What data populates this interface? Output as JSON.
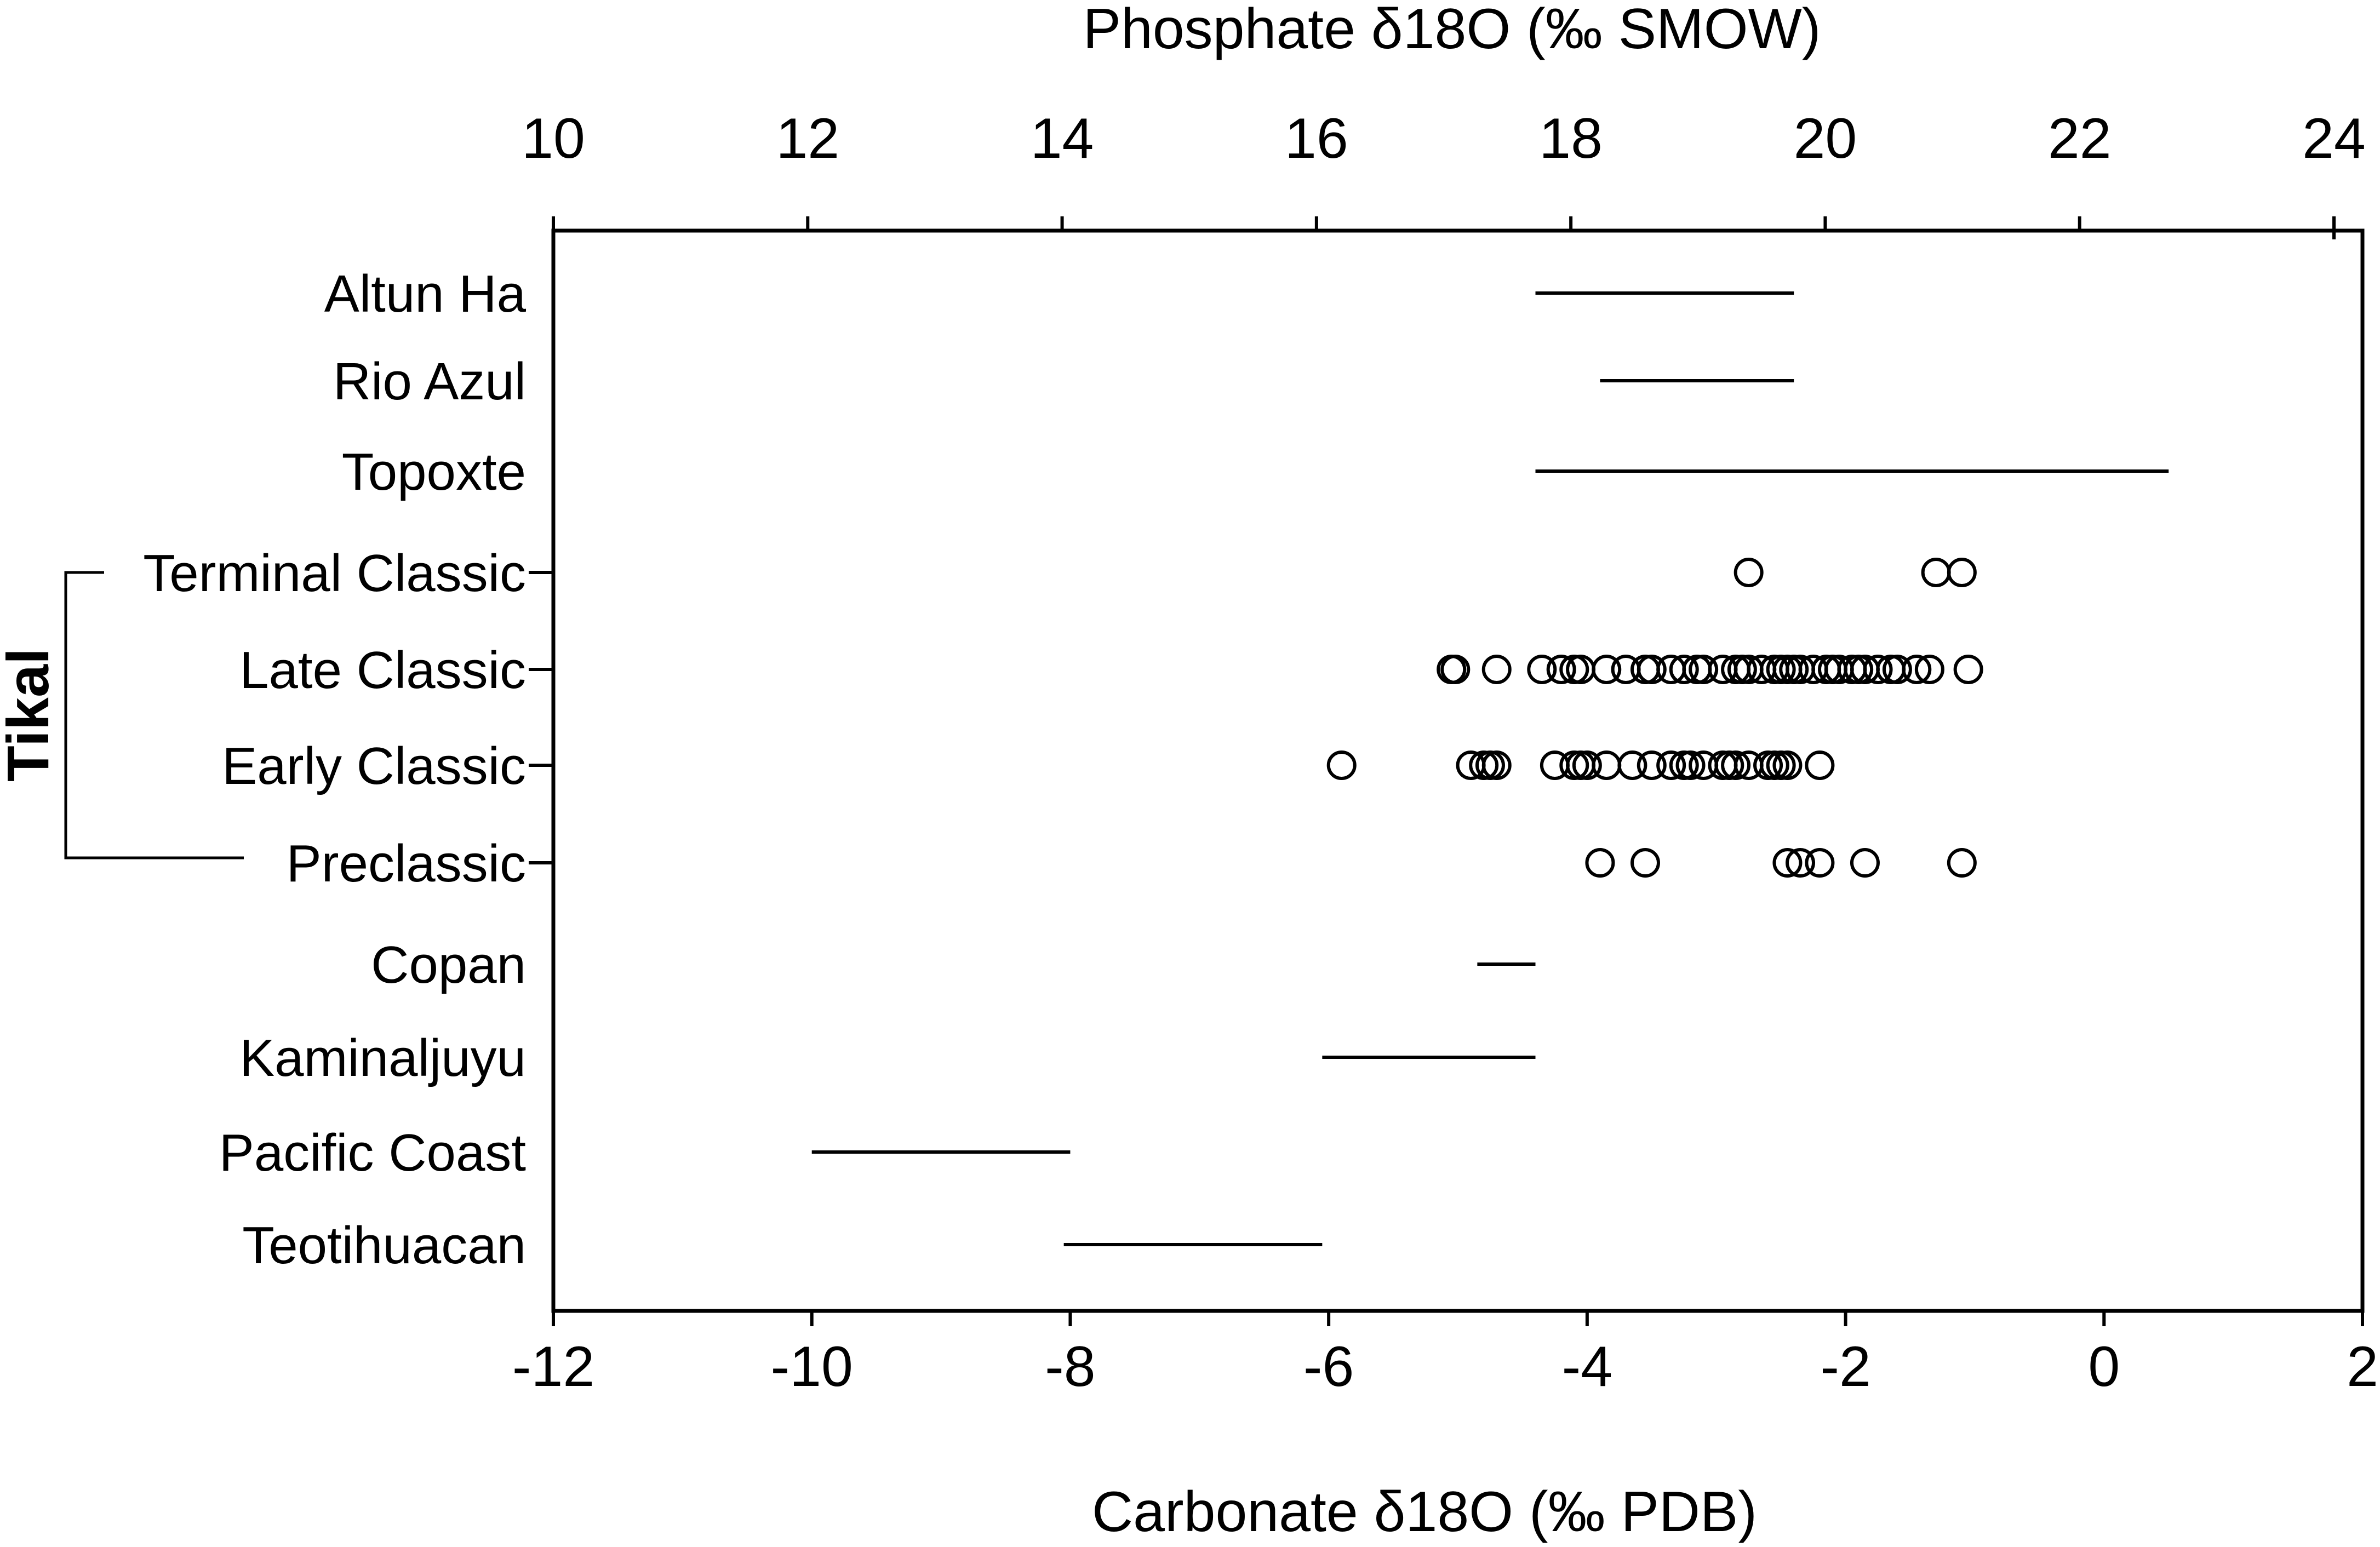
{
  "chart_data": {
    "type": "scatter",
    "top_axis": {
      "label": "Phosphate δ18O (‰ SMOW)",
      "ticks": [
        10,
        12,
        14,
        16,
        18,
        20,
        22,
        24
      ],
      "range": [
        10,
        24
      ]
    },
    "bottom_axis": {
      "label": "Carbonate δ18O (‰ PDB)",
      "ticks": [
        -12,
        -10,
        -8,
        -6,
        -4,
        -2,
        0,
        2
      ],
      "range": [
        -12,
        2
      ]
    },
    "group_label": "Tikal",
    "categories": [
      {
        "name": "Altun Ha",
        "range_pdb": [
          -4.4,
          -2.4
        ]
      },
      {
        "name": "Rio Azul",
        "range_pdb": [
          -3.9,
          -2.4
        ]
      },
      {
        "name": "Topoxte",
        "range_pdb": [
          -4.4,
          0.5
        ]
      },
      {
        "name": "Terminal Classic",
        "points_pdb": [
          -2.75,
          -1.3,
          -1.1
        ]
      },
      {
        "name": "Late Classic",
        "points_pdb": [
          -5.05,
          -5.02,
          -4.7,
          -4.35,
          -4.2,
          -4.1,
          -4.05,
          -3.85,
          -3.7,
          -3.55,
          -3.5,
          -3.35,
          -3.25,
          -3.15,
          -3.1,
          -2.95,
          -2.85,
          -2.8,
          -2.75,
          -2.65,
          -2.55,
          -2.5,
          -2.45,
          -2.4,
          -2.35,
          -2.25,
          -2.15,
          -2.1,
          -2.05,
          -1.95,
          -1.9,
          -1.85,
          -1.75,
          -1.65,
          -1.6,
          -1.45,
          -1.35,
          -1.05
        ]
      },
      {
        "name": "Early Classic",
        "points_pdb": [
          -5.9,
          -4.9,
          -4.8,
          -4.75,
          -4.7,
          -4.25,
          -4.1,
          -4.05,
          -4.0,
          -3.85,
          -3.65,
          -3.5,
          -3.35,
          -3.25,
          -3.2,
          -3.1,
          -2.95,
          -2.9,
          -2.85,
          -2.75,
          -2.6,
          -2.55,
          -2.5,
          -2.45,
          -2.2
        ]
      },
      {
        "name": "Preclassic",
        "points_pdb": [
          -3.9,
          -3.55,
          -2.45,
          -2.35,
          -2.2,
          -1.85,
          -1.1
        ]
      },
      {
        "name": "Copan",
        "range_pdb": [
          -4.85,
          -4.4
        ]
      },
      {
        "name": "Kaminaljuyu",
        "range_pdb": [
          -6.05,
          -4.4
        ]
      },
      {
        "name": "Pacific Coast",
        "range_pdb": [
          -10.0,
          -8.0
        ]
      },
      {
        "name": "Teotihuacan",
        "range_pdb": [
          -8.05,
          -6.05
        ]
      }
    ]
  }
}
